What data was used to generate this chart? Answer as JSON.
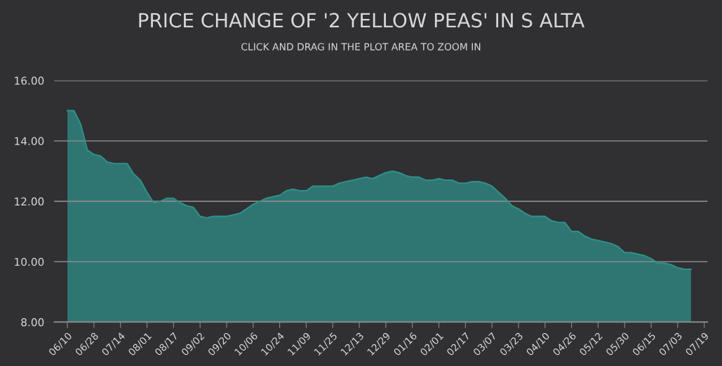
{
  "chart_data": {
    "type": "area",
    "title": "PRICE CHANGE OF '2 YELLOW PEAS' IN S ALTA",
    "subtitle": "CLICK AND DRAG IN THE PLOT AREA TO ZOOM IN",
    "categories": [
      "06/10",
      null,
      null,
      null,
      "06/28",
      null,
      null,
      null,
      "07/14",
      null,
      null,
      null,
      "08/01",
      null,
      null,
      null,
      "08/17",
      null,
      null,
      null,
      "09/02",
      null,
      null,
      null,
      "09/20",
      null,
      null,
      null,
      "10/06",
      null,
      null,
      null,
      "10/24",
      null,
      null,
      null,
      "11/09",
      null,
      null,
      null,
      "11/25",
      null,
      null,
      null,
      "12/13",
      null,
      null,
      null,
      "12/29",
      null,
      null,
      null,
      "01/16",
      null,
      null,
      null,
      "02/01",
      null,
      null,
      null,
      "02/17",
      null,
      null,
      null,
      "03/07",
      null,
      null,
      null,
      "03/23",
      null,
      null,
      null,
      "04/10",
      null,
      null,
      null,
      "04/26",
      null,
      null,
      null,
      "05/12",
      null,
      null,
      null,
      "05/30",
      null,
      null,
      null,
      "06/15",
      null,
      null,
      null,
      "07/03",
      null,
      null,
      null,
      "07/19"
    ],
    "series": [
      {
        "color": "#2f8f8a",
        "values": [
          15.0,
          15.0,
          14.55,
          13.7,
          13.55,
          13.5,
          13.3,
          13.25,
          13.25,
          13.25,
          12.9,
          12.7,
          12.3,
          11.95,
          12.0,
          12.1,
          12.1,
          11.95,
          11.85,
          11.8,
          11.5,
          11.45,
          11.5,
          11.5,
          11.5,
          11.55,
          11.6,
          11.75,
          11.9,
          12.0,
          12.1,
          12.15,
          12.2,
          12.35,
          12.4,
          12.35,
          12.35,
          12.5,
          12.5,
          12.5,
          12.5,
          12.6,
          12.65,
          12.7,
          12.75,
          12.8,
          12.75,
          12.85,
          12.95,
          13.0,
          12.95,
          12.85,
          12.8,
          12.8,
          12.7,
          12.7,
          12.75,
          12.7,
          12.7,
          12.6,
          12.6,
          12.65,
          12.65,
          12.6,
          12.5,
          12.3,
          12.1,
          11.85,
          11.75,
          11.6,
          11.5,
          11.5,
          11.5,
          11.35,
          11.3,
          11.3,
          11.0,
          11.0,
          10.85,
          10.75,
          10.7,
          10.65,
          10.6,
          10.5,
          10.3,
          10.3,
          10.25,
          10.2,
          10.1,
          9.95,
          9.95,
          9.9,
          9.8,
          9.75,
          9.75,
          null,
          null
        ]
      }
    ],
    "ylim": [
      8,
      16
    ],
    "yticks": [
      {
        "value": 8,
        "label": "8.00"
      },
      {
        "value": 10,
        "label": "10.00"
      },
      {
        "value": 12,
        "label": "12.00"
      },
      {
        "value": 14,
        "label": "14.00"
      },
      {
        "value": 16,
        "label": "16.00"
      }
    ],
    "grid": "y",
    "legend": false,
    "marker": "none",
    "line_style": "solid"
  }
}
